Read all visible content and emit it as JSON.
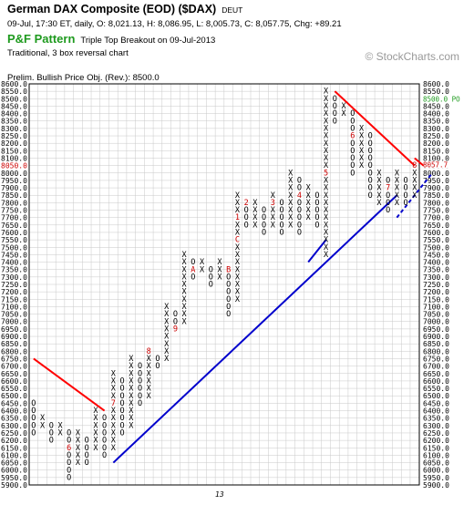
{
  "header": {
    "title": "German DAX Composite (EOD) ($DAX)",
    "exchange": "DEUT",
    "summary": "09-Jul, 17:30 ET, daily, O: 8,021.13, H: 8,086.95, L: 8,005.73, C: 8,057.75, Chg: +89.21",
    "pattern_label": "P&F Pattern",
    "signal": "Triple Top Breakout on 09-Jul-2013",
    "chart_type": "Traditional, 3 box reversal chart",
    "reversal_note": "",
    "objective": "Prelim. Bullish Price Obj. (Rev.): 8500.0",
    "watermark": "© StockCharts.com"
  },
  "chart_data": {
    "type": "point-and-figure",
    "box_size": 50,
    "reversal": 3,
    "ylim": [
      5900,
      8600
    ],
    "y_ticks": [
      "8600.0",
      "8550.0",
      "8500.0",
      "8450.0",
      "8400.0",
      "8350.0",
      "8300.0",
      "8250.0",
      "8200.0",
      "8150.0",
      "8100.0",
      "8050.0",
      "8000.0",
      "7950.0",
      "7900.0",
      "7850.0",
      "7800.0",
      "7750.0",
      "7700.0",
      "7650.0",
      "7600.0",
      "7550.0",
      "7500.0",
      "7450.0",
      "7400.0",
      "7350.0",
      "7300.0",
      "7250.0",
      "7200.0",
      "7150.0",
      "7100.0",
      "7050.0",
      "7000.0",
      "6950.0",
      "6900.0",
      "6850.0",
      "6800.0",
      "6750.0",
      "6700.0",
      "6650.0",
      "6600.0",
      "6550.0",
      "6500.0",
      "6450.0",
      "6400.0",
      "6350.0",
      "6300.0",
      "6250.0",
      "6200.0",
      "6150.0",
      "6100.0",
      "6050.0",
      "6000.0",
      "5950.0",
      "5900.0"
    ],
    "x_label": "13",
    "columns": [
      {
        "type": "O",
        "top": 6450,
        "bottom": 6250
      },
      {
        "type": "X",
        "top": 6350,
        "bottom": 6300
      },
      {
        "type": "O",
        "top": 6300,
        "bottom": 6200
      },
      {
        "type": "X",
        "top": 6300,
        "bottom": 6250
      },
      {
        "type": "O",
        "top": 6250,
        "bottom": 5950,
        "labels": {
          "6150": "6"
        }
      },
      {
        "type": "X",
        "top": 6250,
        "bottom": 6050
      },
      {
        "type": "O",
        "top": 6200,
        "bottom": 6050
      },
      {
        "type": "X",
        "top": 6400,
        "bottom": 6150
      },
      {
        "type": "O",
        "top": 6350,
        "bottom": 6100
      },
      {
        "type": "X",
        "top": 6650,
        "bottom": 6150,
        "labels": {
          "6450": "7"
        }
      },
      {
        "type": "O",
        "top": 6600,
        "bottom": 6250
      },
      {
        "type": "X",
        "top": 6750,
        "bottom": 6300
      },
      {
        "type": "O",
        "top": 6700,
        "bottom": 6450
      },
      {
        "type": "X",
        "top": 6800,
        "bottom": 6500,
        "labels": {
          "6800": "8"
        }
      },
      {
        "type": "O",
        "top": 6750,
        "bottom": 6700
      },
      {
        "type": "X",
        "top": 7100,
        "bottom": 6750
      },
      {
        "type": "O",
        "top": 7050,
        "bottom": 6950,
        "labels": {
          "6950": "9"
        }
      },
      {
        "type": "X",
        "top": 7450,
        "bottom": 7000
      },
      {
        "type": "O",
        "top": 7400,
        "bottom": 7300,
        "labels": {
          "7350": "A"
        }
      },
      {
        "type": "X",
        "top": 7400,
        "bottom": 7350
      },
      {
        "type": "O",
        "top": 7350,
        "bottom": 7250
      },
      {
        "type": "X",
        "top": 7400,
        "bottom": 7300
      },
      {
        "type": "O",
        "top": 7350,
        "bottom": 7050,
        "labels": {
          "7350": "B"
        }
      },
      {
        "type": "X",
        "top": 7850,
        "bottom": 7150,
        "labels": {
          "7700": "1",
          "7550": "C"
        }
      },
      {
        "type": "O",
        "top": 7800,
        "bottom": 7650,
        "labels": {
          "7800": "2"
        }
      },
      {
        "type": "X",
        "top": 7800,
        "bottom": 7650
      },
      {
        "type": "O",
        "top": 7750,
        "bottom": 7600
      },
      {
        "type": "X",
        "top": 7850,
        "bottom": 7650,
        "labels": {
          "7800": "3"
        }
      },
      {
        "type": "O",
        "top": 7800,
        "bottom": 7600
      },
      {
        "type": "X",
        "top": 8000,
        "bottom": 7650
      },
      {
        "type": "O",
        "top": 7950,
        "bottom": 7600,
        "labels": {
          "7850": "4"
        }
      },
      {
        "type": "X",
        "top": 7900,
        "bottom": 7700
      },
      {
        "type": "O",
        "top": 7850,
        "bottom": 7650
      },
      {
        "type": "X",
        "top": 8550,
        "bottom": 7450,
        "labels": {
          "8000": "5"
        }
      },
      {
        "type": "O",
        "top": 8500,
        "bottom": 8350
      },
      {
        "type": "X",
        "top": 8450,
        "bottom": 8400
      },
      {
        "type": "O",
        "top": 8400,
        "bottom": 8000,
        "labels": {
          "8250": "6"
        }
      },
      {
        "type": "X",
        "top": 8300,
        "bottom": 8050
      },
      {
        "type": "O",
        "top": 8250,
        "bottom": 7850
      },
      {
        "type": "X",
        "top": 8000,
        "bottom": 7800
      },
      {
        "type": "O",
        "top": 7950,
        "bottom": 7750,
        "labels": {
          "7900": "7"
        }
      },
      {
        "type": "X",
        "top": 8000,
        "bottom": 7800
      },
      {
        "type": "O",
        "top": 7950,
        "bottom": 7800
      },
      {
        "type": "X",
        "top": 8050,
        "bottom": 7850,
        "labels": {
          "8050": "8"
        }
      }
    ],
    "trendlines": [
      {
        "color": "#ff0000",
        "style": "solid",
        "from": [
          0,
          6750
        ],
        "to": [
          8,
          6400
        ]
      },
      {
        "color": "#ff0000",
        "style": "solid",
        "from": [
          34,
          8550
        ],
        "to": [
          43,
          8050
        ]
      },
      {
        "color": "#ff0000",
        "style": "solid",
        "from": [
          43,
          8100
        ],
        "to": [
          44,
          8050
        ]
      },
      {
        "color": "#0000cc",
        "style": "solid",
        "from": [
          9,
          6050
        ],
        "to": [
          41,
          7850
        ]
      },
      {
        "color": "#0000cc",
        "style": "dashed",
        "from": [
          41,
          7700
        ],
        "to": [
          45,
          8000
        ]
      },
      {
        "color": "#0000cc",
        "style": "solid",
        "from": [
          31,
          7400
        ],
        "to": [
          33,
          7550
        ]
      }
    ],
    "right_axis_callouts": [
      {
        "value": 8500,
        "text": "8500.0 PO",
        "color": "#1e9a1e"
      },
      {
        "value": 8057.75,
        "text": "8057.7",
        "color": "#cc0000"
      }
    ],
    "left_axis_highlight": {
      "value": 8050,
      "text": "8050.0",
      "color": "#cc0000"
    }
  }
}
